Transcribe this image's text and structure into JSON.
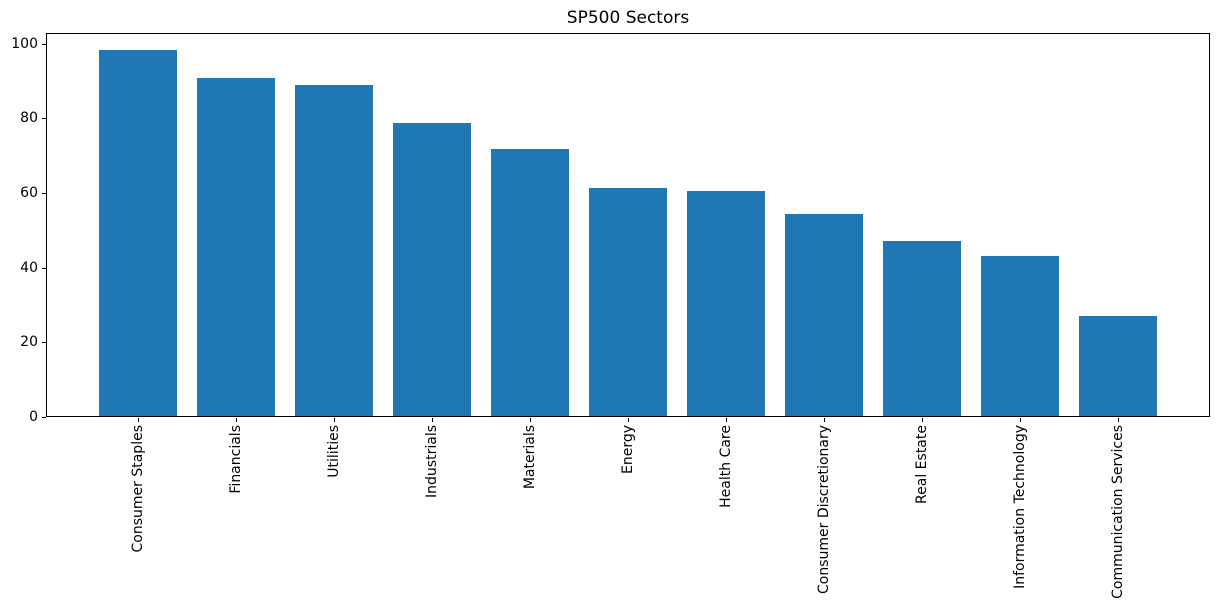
{
  "chart_data": {
    "type": "bar",
    "title": "SP500 Sectors",
    "categories": [
      "Consumer Staples",
      "Financials",
      "Utilities",
      "Industrials",
      "Materials",
      "Energy",
      "Health Care",
      "Consumer Discretionary",
      "Real Estate",
      "Information Technology",
      "Communication Services"
    ],
    "values": [
      98,
      90.5,
      88.6,
      78.4,
      71.5,
      61,
      60.3,
      54,
      47,
      42.9,
      26.8
    ],
    "xlabel": "",
    "ylabel": "",
    "ylim": [
      0,
      102.9
    ],
    "yticks": [
      0,
      20,
      40,
      60,
      80,
      100
    ],
    "x_tick_rotation": 90,
    "grid": false,
    "legend": false,
    "bar_color": "#1f77b4",
    "background_color": "#ffffff",
    "text_color": "#000000"
  }
}
